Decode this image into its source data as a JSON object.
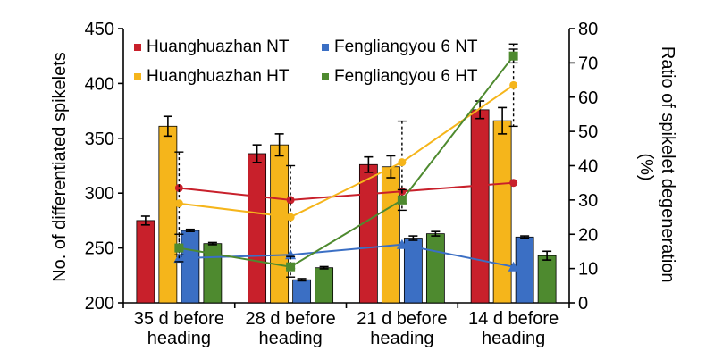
{
  "chart_data": {
    "type": "bar",
    "categories": [
      [
        "35 d before",
        "heading"
      ],
      [
        "28 d before",
        "heading"
      ],
      [
        "21 d before",
        "heading"
      ],
      [
        "14 d before",
        "heading"
      ]
    ],
    "ylabel_left": "No. of differentiated spikelets",
    "ylabel_right": [
      "Ratio of spikelet degeneration",
      "(%)"
    ],
    "ylim_left": [
      200,
      450
    ],
    "yticks_left": [
      200,
      250,
      300,
      350,
      400,
      450
    ],
    "ylim_right": [
      0,
      80
    ],
    "yticks_right": [
      0,
      10,
      20,
      30,
      40,
      50,
      60,
      70,
      80
    ],
    "legend_position": "top-center",
    "grid": false,
    "bar_series": [
      {
        "name": "Huanghuazhan NT",
        "color": "#c8202b",
        "values": [
          275,
          336,
          326,
          376
        ],
        "errors": [
          4,
          8,
          7,
          8
        ]
      },
      {
        "name": "Huanghuazhan HT",
        "color": "#f5b51b",
        "values": [
          361,
          344,
          324,
          366
        ],
        "errors": [
          9,
          10,
          10,
          12
        ]
      },
      {
        "name": "Fengliangyou 6 NT",
        "color": "#3b6fc4",
        "values": [
          266,
          221,
          259,
          260
        ],
        "errors": [
          1,
          1,
          2,
          1
        ]
      },
      {
        "name": "Fengliangyou 6 HT",
        "color": "#4e8a2f",
        "values": [
          254,
          232,
          263,
          243
        ],
        "errors": [
          1,
          1,
          2,
          4
        ]
      }
    ],
    "line_series": [
      {
        "name": "Huanghuazhan NT",
        "color": "#c8202b",
        "marker": "circle",
        "values": [
          33.5,
          30,
          32.5,
          35
        ],
        "errors": [
          0,
          0,
          0,
          0
        ]
      },
      {
        "name": "Huanghuazhan HT",
        "color": "#f5b51b",
        "marker": "circle",
        "values": [
          29,
          25,
          41,
          63.5
        ],
        "errors": [
          15,
          15,
          12,
          12
        ]
      },
      {
        "name": "Fengliangyou 6 NT",
        "color": "#3b6fc4",
        "marker": "triangle",
        "values": [
          13,
          14,
          17,
          10.5
        ],
        "errors": [
          0,
          0,
          0,
          0
        ]
      },
      {
        "name": "Fengliangyou 6 HT",
        "color": "#4e8a2f",
        "marker": "square",
        "values": [
          16,
          10.5,
          30,
          72
        ],
        "errors": [
          4,
          3,
          3,
          2
        ]
      }
    ]
  }
}
